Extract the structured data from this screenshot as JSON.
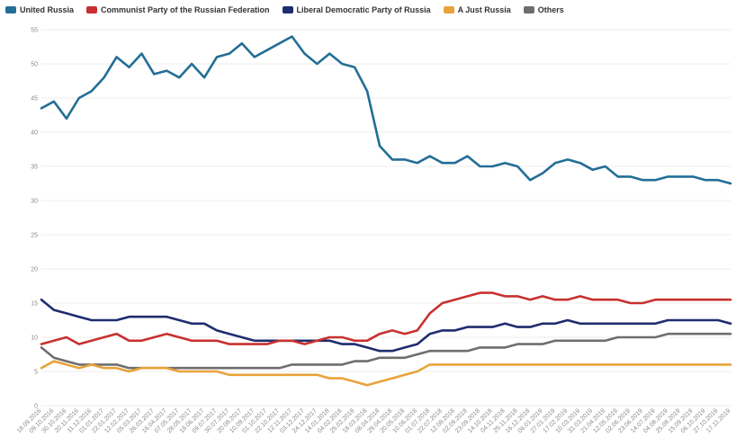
{
  "chart_data": {
    "type": "line",
    "title": "",
    "xlabel": "",
    "ylabel": "",
    "ylim": [
      0,
      55
    ],
    "yticks": [
      0,
      5,
      10,
      15,
      20,
      25,
      30,
      35,
      40,
      45,
      50,
      55
    ],
    "grid": true,
    "legend_position": "top-left",
    "x_dates": [
      "18.09.2016",
      "09.10.2016",
      "30.10.2016",
      "20.11.2016",
      "11.12.2016",
      "01.01.2017",
      "22.01.2017",
      "12.02.2017",
      "05.03.2017",
      "26.03.2017",
      "16.04.2017",
      "07.05.2017",
      "28.05.2017",
      "18.06.2017",
      "09.07.2017",
      "30.07.2017",
      "20.08.2017",
      "10.09.2017",
      "01.10.2017",
      "22.10.2017",
      "12.11.2017",
      "03.12.2017",
      "24.12.2017",
      "14.01.2018",
      "04.02.2018",
      "25.02.2018",
      "18.03.2018",
      "08.04.2018",
      "29.04.2018",
      "20.05.2018",
      "10.06.2018",
      "01.07.2018",
      "22.07.2018",
      "12.08.2018",
      "02.09.2018",
      "23.09.2018",
      "14.10.2018",
      "04.11.2018",
      "25.11.2018",
      "16.12.2018",
      "06.01.2019",
      "27.01.2019",
      "17.02.2019",
      "10.03.2019",
      "31.03.2019",
      "21.04.2019",
      "12.05.2019",
      "02.06.2019",
      "23.06.2019",
      "14.07.2019",
      "04.08.2019",
      "25.08.2019",
      "15.09.2019",
      "06.10.2019",
      "27.10.2019",
      "17.11.2019"
    ],
    "x_tick_labels": [
      "18.09.2016",
      "09.10.2016",
      "30.10.2016",
      "20.11.2016",
      "11.12.2016",
      "01.01.2017",
      "22.01.2017",
      "12.02.2017",
      "05.03.2017",
      "26.03.2017",
      "16.04.2017",
      "07.05.2017",
      "28.05.2017",
      "18.06.2017",
      "09.07.2017",
      "30.07.2017",
      "20.08.2017",
      "10.09.2017",
      "01.10.2017",
      "22.10.2017",
      "12.11.2017",
      "03.12.2017",
      "24.12.2017",
      "14.01.2018",
      "04.02.2018",
      "25.02.2018",
      "18.03.2018",
      "08.04.2018",
      "29.04.2018",
      "20.05.2018",
      "10.06.2018",
      "01.07.2018",
      "22.07.2018",
      "12.08.2018",
      "02.09.2018",
      "23.09.2018",
      "14.10.2018",
      "04.11.2018",
      "25.11.2018",
      "16.12.2018",
      "06.01.2019",
      "27.01.2019",
      "17.02.2019",
      "10.03.2019",
      "31.03.2019",
      "21.04.2019",
      "12.05.2019",
      "02.06.2019",
      "23.06.2019",
      "14.07.2019",
      "04.08.2019",
      "25.08.2019",
      "15.09.2019",
      "06.10.2019",
      "27.10.2019",
      "17.11.2019"
    ],
    "series": [
      {
        "name": "United Russia",
        "color": "#236e96",
        "values": [
          43.5,
          44.5,
          42,
          45,
          46,
          48,
          51,
          49.5,
          51.5,
          48.5,
          49,
          48,
          50,
          48,
          51,
          51.5,
          53,
          51,
          52,
          53,
          54,
          51.5,
          50,
          51.5,
          50,
          49.5,
          46,
          38,
          36,
          36,
          35.5,
          36.5,
          35.5,
          35.5,
          36.5,
          35,
          35,
          35.5,
          35,
          33,
          34,
          35.5,
          36,
          35.5,
          34.5,
          35,
          33.5,
          33.5,
          33,
          33,
          33.5,
          33.5,
          33.5,
          33,
          33,
          32.5
        ]
      },
      {
        "name": "Communist Party of the Russian Federation",
        "color": "#c8312f",
        "values": [
          9,
          9.5,
          10,
          9,
          9.5,
          10,
          10.5,
          9.5,
          9.5,
          10,
          10.5,
          10,
          9.5,
          9.5,
          9.5,
          9,
          9,
          9,
          9,
          9.5,
          9.5,
          9,
          9.5,
          10,
          10,
          9.5,
          9.5,
          10.5,
          11,
          10.5,
          11,
          13.5,
          15,
          15.5,
          16,
          16.5,
          16.5,
          16,
          16,
          15.5,
          16,
          15.5,
          15.5,
          16,
          15.5,
          15.5,
          15.5,
          15,
          15,
          15.5,
          15.5,
          15.5,
          15.5,
          15.5,
          15.5,
          15.5
        ]
      },
      {
        "name": "Liberal Democratic Party of Russia",
        "color": "#1f2c6e",
        "values": [
          15.5,
          14,
          13.5,
          13,
          12.5,
          12.5,
          12.5,
          13,
          13,
          13,
          13,
          12.5,
          12,
          12,
          11,
          10.5,
          10,
          9.5,
          9.5,
          9.5,
          9.5,
          9.5,
          9.5,
          9.5,
          9,
          9,
          8.5,
          8,
          8,
          8.5,
          9,
          10.5,
          11,
          11,
          11.5,
          11.5,
          11.5,
          12,
          11.5,
          11.5,
          12,
          12,
          12.5,
          12,
          12,
          12,
          12,
          12,
          12,
          12,
          12.5,
          12.5,
          12.5,
          12.5,
          12.5,
          12
        ]
      },
      {
        "name": "A Just Russia",
        "color": "#e8a33a",
        "values": [
          5.5,
          6.5,
          6,
          5.5,
          6,
          5.5,
          5.5,
          5,
          5.5,
          5.5,
          5.5,
          5,
          5,
          5,
          5,
          4.5,
          4.5,
          4.5,
          4.5,
          4.5,
          4.5,
          4.5,
          4.5,
          4,
          4,
          3.5,
          3,
          3.5,
          4,
          4.5,
          5,
          6,
          6,
          6,
          6,
          6,
          6,
          6,
          6,
          6,
          6,
          6,
          6,
          6,
          6,
          6,
          6,
          6,
          6,
          6,
          6,
          6,
          6,
          6,
          6,
          6
        ]
      },
      {
        "name": "Others",
        "color": "#6e6e6e",
        "values": [
          8.5,
          7,
          6.5,
          6,
          6,
          6,
          6,
          5.5,
          5.5,
          5.5,
          5.5,
          5.5,
          5.5,
          5.5,
          5.5,
          5.5,
          5.5,
          5.5,
          5.5,
          5.5,
          6,
          6,
          6,
          6,
          6,
          6.5,
          6.5,
          7,
          7,
          7,
          7.5,
          8,
          8,
          8,
          8,
          8.5,
          8.5,
          8.5,
          9,
          9,
          9,
          9.5,
          9.5,
          9.5,
          9.5,
          9.5,
          10,
          10,
          10,
          10,
          10.5,
          10.5,
          10.5,
          10.5,
          10.5,
          10.5
        ]
      }
    ]
  }
}
